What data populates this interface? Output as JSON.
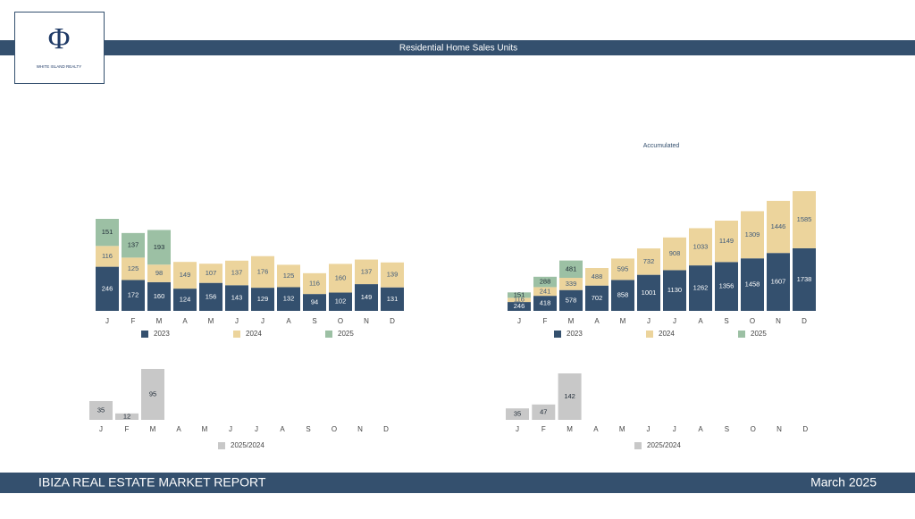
{
  "header": {
    "title": "Residential Home Sales Units"
  },
  "logo": {
    "symbol": "Φ",
    "name": "WHITE ISLAND REALTY"
  },
  "footer": {
    "left": "IBIZA REAL ESTATE MARKET REPORT",
    "right": "March 2025"
  },
  "chart_data": [
    {
      "type": "stacked-bar",
      "categories": [
        "J",
        "F",
        "M",
        "A",
        "M",
        "J",
        "J",
        "A",
        "S",
        "O",
        "N",
        "D"
      ],
      "series": [
        {
          "name": "2023",
          "color": "#34506e",
          "values": [
            246,
            172,
            160,
            124,
            156,
            143,
            129,
            132,
            94,
            102,
            149,
            131
          ]
        },
        {
          "name": "2024",
          "color": "#ecd49c",
          "values": [
            116,
            125,
            98,
            149,
            107,
            137,
            176,
            125,
            116,
            160,
            137,
            139
          ]
        },
        {
          "name": "2025",
          "color": "#9cc0a4",
          "values": [
            151,
            137,
            193,
            null,
            null,
            null,
            null,
            null,
            null,
            null,
            null,
            null
          ]
        }
      ]
    },
    {
      "type": "stacked-bar",
      "title": "Accumulated",
      "categories": [
        "J",
        "F",
        "M",
        "A",
        "M",
        "J",
        "J",
        "A",
        "S",
        "O",
        "N",
        "D"
      ],
      "series": [
        {
          "name": "2023",
          "color": "#34506e",
          "values": [
            246,
            418,
            578,
            702,
            858,
            1001,
            1130,
            1262,
            1356,
            1458,
            1607,
            1738
          ]
        },
        {
          "name": "2024",
          "color": "#ecd49c",
          "values": [
            116,
            241,
            339,
            488,
            595,
            732,
            908,
            1033,
            1149,
            1309,
            1446,
            1585
          ]
        },
        {
          "name": "2025",
          "color": "#9cc0a4",
          "values": [
            151,
            288,
            481,
            null,
            null,
            null,
            null,
            null,
            null,
            null,
            null,
            null
          ]
        }
      ]
    },
    {
      "type": "bar",
      "categories": [
        "J",
        "F",
        "M",
        "A",
        "M",
        "J",
        "J",
        "A",
        "S",
        "O",
        "N",
        "D"
      ],
      "series": [
        {
          "name": "2025/2024",
          "color": "#c8c8c8",
          "values": [
            35,
            12,
            95,
            null,
            null,
            null,
            null,
            null,
            null,
            null,
            null,
            null
          ]
        }
      ]
    },
    {
      "type": "bar",
      "categories": [
        "J",
        "F",
        "M",
        "A",
        "M",
        "J",
        "J",
        "A",
        "S",
        "O",
        "N",
        "D"
      ],
      "series": [
        {
          "name": "2025/2024",
          "color": "#c8c8c8",
          "values": [
            35,
            47,
            142,
            null,
            null,
            null,
            null,
            null,
            null,
            null,
            null,
            null
          ]
        }
      ]
    }
  ]
}
